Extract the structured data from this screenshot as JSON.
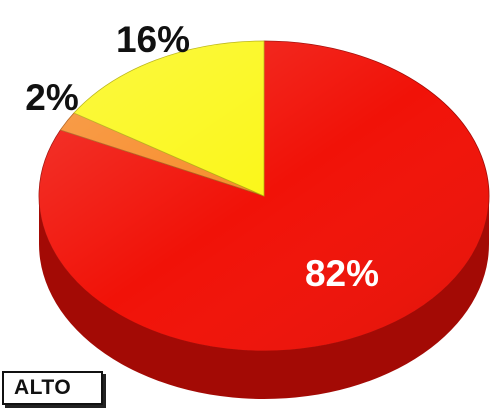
{
  "chart_data": {
    "type": "pie",
    "title": "",
    "slices": [
      {
        "label": "82%",
        "value": 82,
        "color": "#f11208",
        "side_color": "#a30a05",
        "label_color": "#ffffff"
      },
      {
        "label": "2%",
        "value": 2,
        "color": "#f78d2c",
        "side_color": "#b35d17",
        "label_color": "#111111"
      },
      {
        "label": "16%",
        "value": 16,
        "color": "#fbf71a",
        "side_color": "#b8b30e",
        "label_color": "#111111"
      }
    ]
  },
  "legend": {
    "label": "ALTO"
  }
}
